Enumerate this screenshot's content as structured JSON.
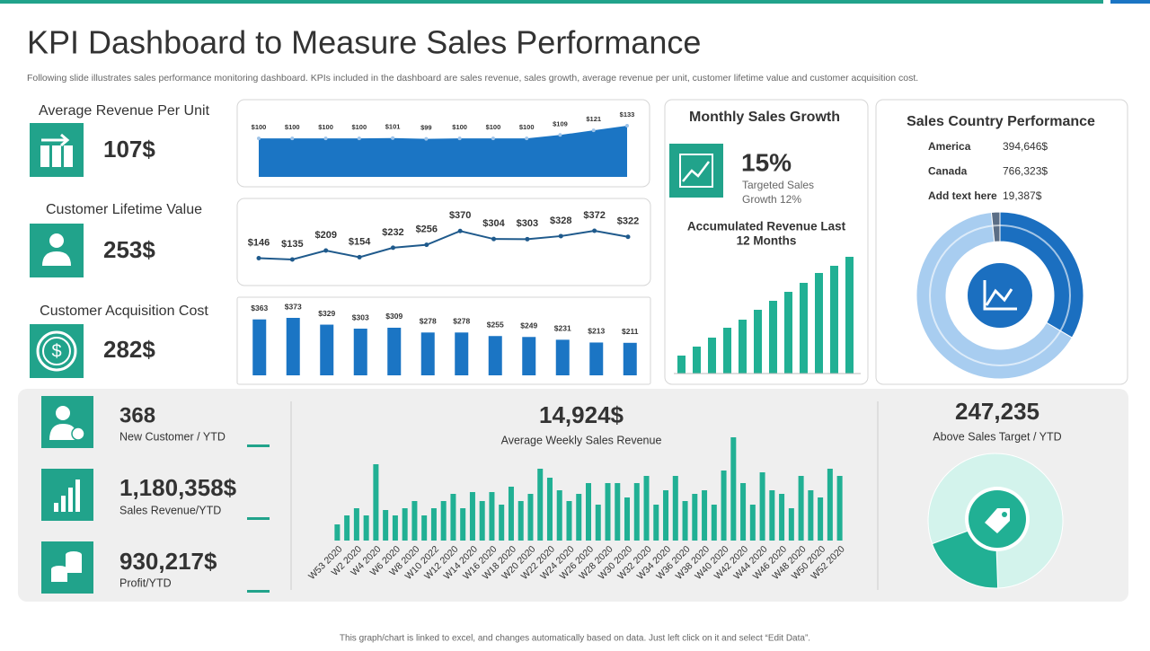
{
  "header": {
    "title": "KPI Dashboard to Measure Sales Performance",
    "subtitle": "Following slide illustrates sales performance monitoring dashboard. KPIs included in the dashboard are sales revenue, sales growth, average revenue per unit, customer lifetime value and customer  acquisition cost."
  },
  "kpis": {
    "avg_revenue": {
      "label": "Average Revenue  Per Unit",
      "value": "107$"
    },
    "lifetime": {
      "label": "Customer  Lifetime Value",
      "value": "253$"
    },
    "acquisition": {
      "label": "Customer Acquisition Cost",
      "value": "282$"
    },
    "growth": {
      "title": "Monthly Sales Growth",
      "value": "15%",
      "note_lines": [
        "Targeted  Sales",
        "Growth  12%"
      ]
    },
    "new_customer": {
      "value": "368",
      "label": "New Customer  / YTD"
    },
    "sales_revenue": {
      "value": "1,180,358$",
      "label": "Sales Revenue/YTD"
    },
    "profit": {
      "value": "930,217$",
      "label": "Profit/YTD"
    },
    "weekly": {
      "value": "14,924$",
      "label": "Average  Weekly Sales Revenue"
    },
    "target": {
      "value": "247,235",
      "label": "Above  Sales Target  / YTD"
    }
  },
  "chart_data": [
    {
      "type": "area",
      "color": "#1b75c4",
      "values": [
        100,
        100,
        100,
        100,
        101,
        99,
        100,
        100,
        100,
        109,
        121,
        133
      ],
      "value_labels": [
        "$100",
        "$100",
        "$100",
        "$100",
        "$101",
        "$99",
        "$100",
        "$100",
        "$100",
        "$109",
        "$121",
        "$133"
      ]
    },
    {
      "type": "line",
      "color": "#1f5a8c",
      "values": [
        146,
        135,
        209,
        154,
        232,
        256,
        370,
        304,
        303,
        328,
        372,
        322
      ],
      "value_labels": [
        "$146",
        "$135",
        "$209",
        "$154",
        "$232",
        "$256",
        "$370",
        "$304",
        "$303",
        "$328",
        "$372",
        "$322"
      ]
    },
    {
      "type": "bar",
      "color": "#1b75c4",
      "values": [
        363,
        373,
        329,
        303,
        309,
        278,
        278,
        255,
        249,
        231,
        213,
        211
      ],
      "value_labels": [
        "$363",
        "$373",
        "$329",
        "$303",
        "$309",
        "$278",
        "$278",
        "$255",
        "$249",
        "$231",
        "$213",
        "$211"
      ]
    },
    {
      "type": "bar",
      "title_lines": [
        "Accumulated Revenue Last",
        "12 Months"
      ],
      "color": "#21b094",
      "values": [
        20,
        30,
        40,
        51,
        60,
        71,
        81,
        91,
        101,
        112,
        120,
        130
      ]
    },
    {
      "type": "pie",
      "title": "Sales Country Performance",
      "categories": [
        "America",
        "Canada",
        "Add text here"
      ],
      "values": [
        394646,
        766323,
        19387
      ],
      "value_labels": [
        "394,646$",
        "766,323$",
        "19,387$"
      ],
      "colors": [
        "#1b6fc0",
        "#a8cdf0",
        "#5b6e86"
      ]
    },
    {
      "type": "bar",
      "color": "#21b094",
      "categories": [
        "W53 2020",
        null,
        "W2 2020",
        null,
        "W4 2020",
        null,
        "W6 2020",
        null,
        "W8 2020",
        null,
        "W10 2022",
        null,
        "W12 2020",
        null,
        "W14 2020",
        null,
        "W16 2020",
        null,
        "W18 2020",
        null,
        "W20 2020",
        null,
        "W22 2020",
        null,
        "W24 2020",
        null,
        "W26 2020",
        null,
        "W28 2020",
        null,
        "W30 2020",
        null,
        "W32 2020",
        null,
        "W34 2020",
        null,
        "W36 2020",
        null,
        "W38 2020",
        null,
        "W40 2020",
        null,
        "W42 2020",
        null,
        "W44 2020",
        null,
        "W46 2020",
        null,
        "W48 2020",
        null,
        "W50 2020",
        null,
        "W52 2020"
      ],
      "values": [
        18,
        28,
        36,
        28,
        85,
        34,
        28,
        36,
        44,
        28,
        36,
        44,
        52,
        36,
        54,
        44,
        54,
        40,
        60,
        44,
        52,
        80,
        70,
        56,
        44,
        52,
        64,
        40,
        64,
        64,
        48,
        64,
        72,
        40,
        56,
        72,
        44,
        52,
        56,
        40,
        78,
        115,
        64,
        40,
        76,
        56,
        52,
        36,
        72,
        56,
        48,
        80,
        72
      ]
    },
    {
      "type": "pie",
      "values": [
        80,
        20
      ],
      "colors": [
        "#d3f3ec",
        "#21b094"
      ]
    }
  ]
}
